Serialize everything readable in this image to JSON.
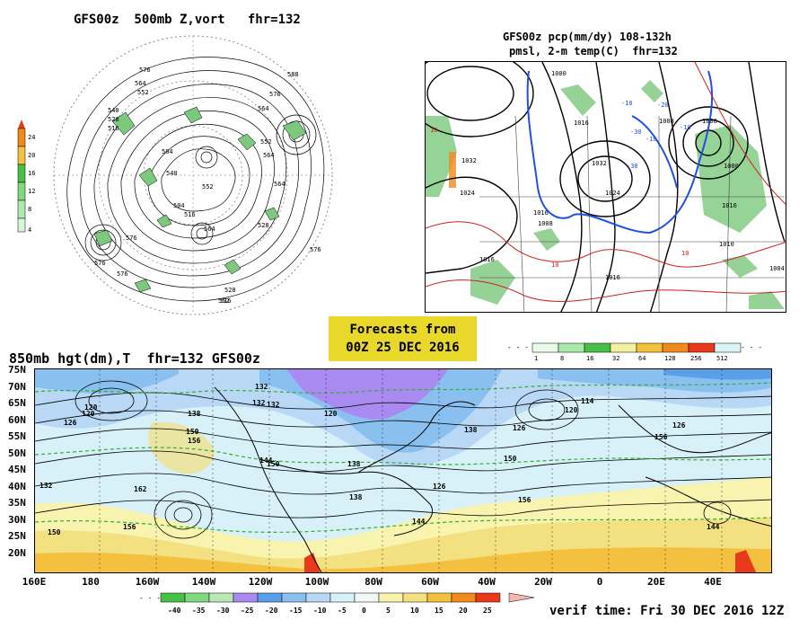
{
  "panel_500mb": {
    "title": "GFS00z  500mb Z,vort   fhr=132",
    "contour_labels": [
      "576",
      "564",
      "552",
      "540",
      "528",
      "516",
      "588",
      "576",
      "564",
      "552",
      "504",
      "504",
      "516",
      "528",
      "564",
      "576",
      "552",
      "564",
      "576",
      "516",
      "528",
      "540",
      "552",
      "564",
      "576",
      "576"
    ],
    "colorbar": {
      "ticks": [
        "24",
        "20",
        "16",
        "12",
        "8",
        "4"
      ],
      "colors": [
        "#f08a1c",
        "#f3c040",
        "#48c048",
        "#80d880",
        "#b0e8b0",
        "#d8f5d8"
      ]
    }
  },
  "panel_pcp": {
    "title_line1": "GFS00z pcp(mm/dy) 108-132h",
    "title_line2": "pmsl, 2-m temp(C)  fhr=132",
    "contour_labels": [
      "1032",
      "1024",
      "1016",
      "1016",
      "1008",
      "1000",
      "1016",
      "1024",
      "1032",
      "1000",
      "1008",
      "1016",
      "1016",
      "1010",
      "1008",
      "1004",
      "-10",
      "-30",
      "-20",
      "-10",
      "10",
      "10",
      "10",
      "-30",
      "-10"
    ],
    "colorbar": {
      "ticks": [
        "1",
        "8",
        "16",
        "32",
        "64",
        "128",
        "256",
        "512"
      ],
      "colors": [
        "#e8fbe8",
        "#a8e8a8",
        "#48c048",
        "#f3f0a0",
        "#f3c040",
        "#f08a1c",
        "#e83a1a",
        "#d8f5f5"
      ]
    }
  },
  "forecast_box": {
    "line1": "Forecasts from",
    "line2": "00Z 25 DEC 2016"
  },
  "panel_850mb": {
    "title": "850mb hgt(dm),T  fhr=132 GFS00z",
    "lat_labels": [
      "75N",
      "70N",
      "65N",
      "60N",
      "55N",
      "50N",
      "45N",
      "40N",
      "35N",
      "30N",
      "25N",
      "20N"
    ],
    "lon_labels": [
      "160E",
      "180",
      "160W",
      "140W",
      "120W",
      "100W",
      "80W",
      "60W",
      "40W",
      "20W",
      "0",
      "20E",
      "40E"
    ],
    "contour_labels": [
      "120",
      "126",
      "132",
      "138",
      "150",
      "156",
      "162",
      "156",
      "150",
      "144",
      "132",
      "138",
      "126",
      "120",
      "132",
      "138",
      "150",
      "156",
      "144",
      "138",
      "150",
      "156",
      "144",
      "126",
      "120",
      "114",
      "120",
      "126",
      "132"
    ],
    "colorbar": {
      "ticks": [
        "-40",
        "-35",
        "-30",
        "-25",
        "-20",
        "-15",
        "-10",
        "-5",
        "0",
        "5",
        "10",
        "15",
        "20",
        "25"
      ],
      "colors": [
        "#48c048",
        "#80d880",
        "#b8e8b8",
        "#a88af0",
        "#5aa0e8",
        "#8ac0f0",
        "#b8d8f5",
        "#d8f0f8",
        "#f0f8f8",
        "#f8f4b0",
        "#f3e080",
        "#f3c040",
        "#f08a1c",
        "#e83a1a"
      ]
    }
  },
  "verif_time": "verif time: Fri 30 DEC 2016 12Z"
}
